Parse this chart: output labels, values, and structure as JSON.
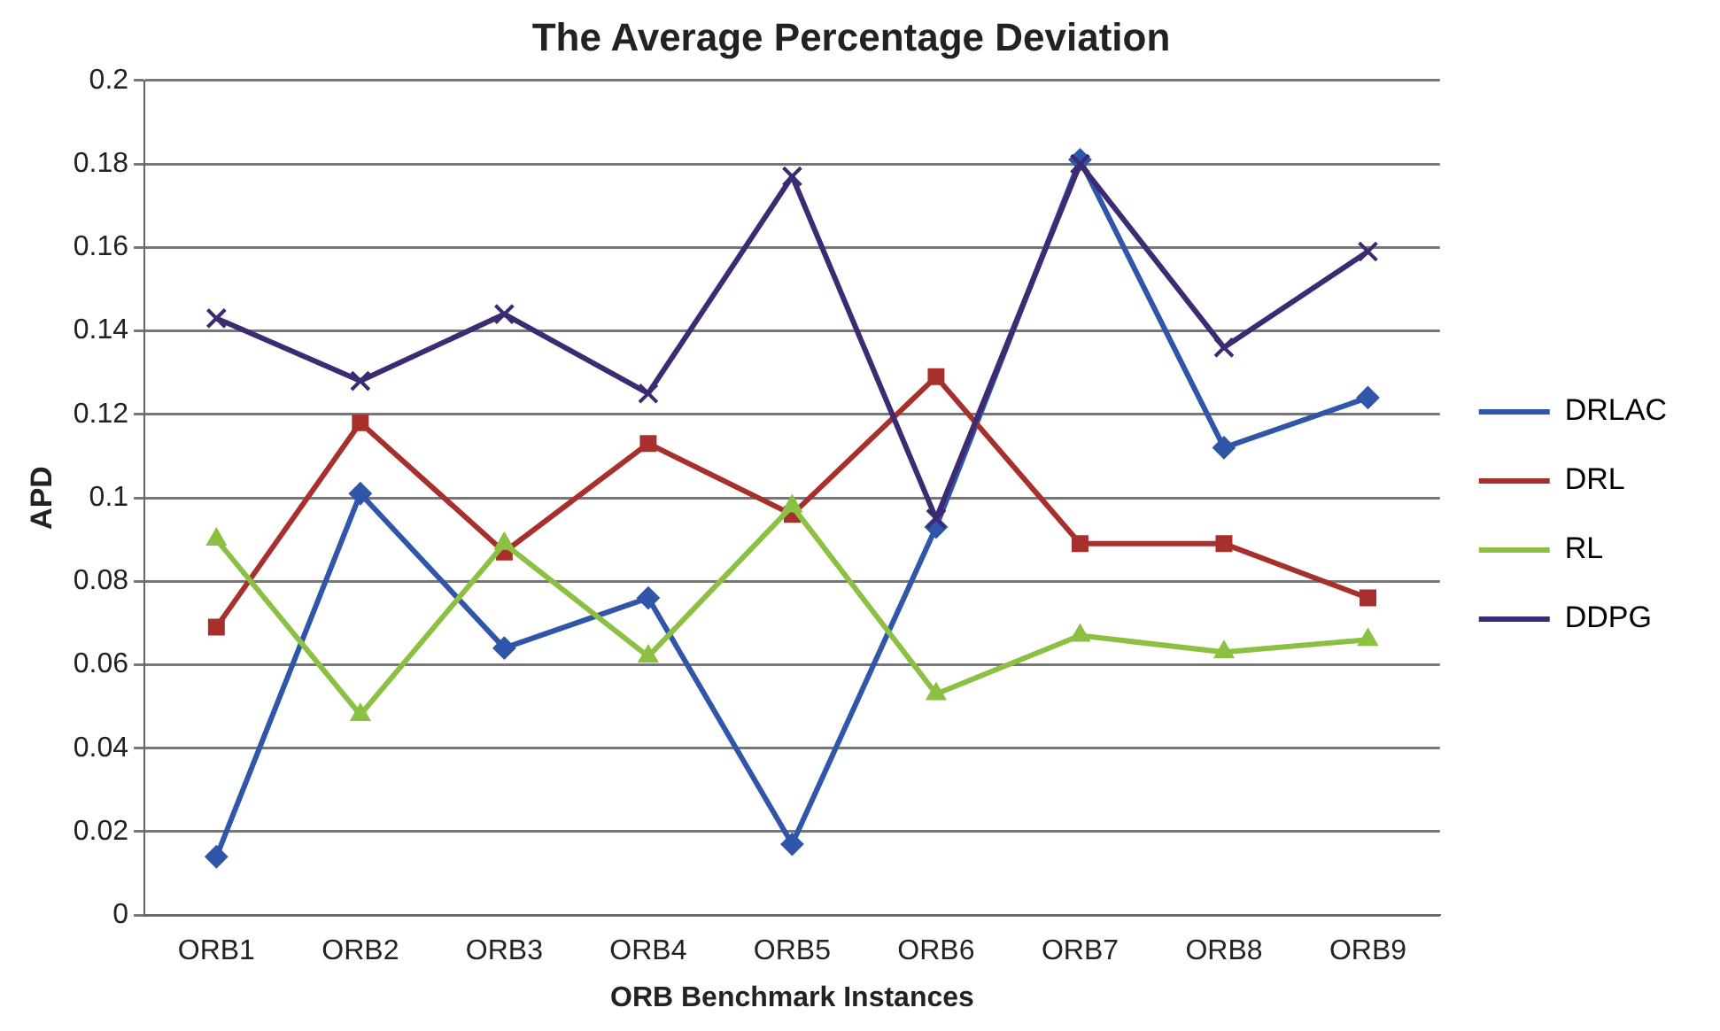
{
  "chart_data": {
    "type": "line",
    "title": "The Average Percentage Deviation",
    "xlabel": "ORB Benchmark Instances",
    "ylabel": "APD",
    "categories": [
      "ORB1",
      "ORB2",
      "ORB3",
      "ORB4",
      "ORB5",
      "ORB6",
      "ORB7",
      "ORB8",
      "ORB9"
    ],
    "series": [
      {
        "name": "DRLAC",
        "color": "#2f56a8",
        "marker": "diamond",
        "values": [
          0.014,
          0.101,
          0.064,
          0.076,
          0.017,
          0.093,
          0.181,
          0.112,
          0.124
        ]
      },
      {
        "name": "DRL",
        "color": "#a8302c",
        "marker": "square",
        "values": [
          0.069,
          0.118,
          0.087,
          0.113,
          0.096,
          0.129,
          0.089,
          0.089,
          0.076
        ]
      },
      {
        "name": "RL",
        "color": "#8cc043",
        "marker": "triangle",
        "values": [
          0.09,
          0.048,
          0.089,
          0.062,
          0.098,
          0.053,
          0.067,
          0.063,
          0.066
        ]
      },
      {
        "name": "DDPG",
        "color": "#3c2a72",
        "marker": "cross",
        "values": [
          0.143,
          0.128,
          0.144,
          0.125,
          0.177,
          0.095,
          0.18,
          0.136,
          0.159
        ]
      }
    ],
    "ylim": [
      0,
      0.2
    ],
    "yticks": [
      0,
      0.02,
      0.04,
      0.06,
      0.08,
      0.1,
      0.12,
      0.14,
      0.16,
      0.18,
      0.2
    ],
    "grid": "y",
    "legend": "right",
    "line_style": "solid"
  }
}
